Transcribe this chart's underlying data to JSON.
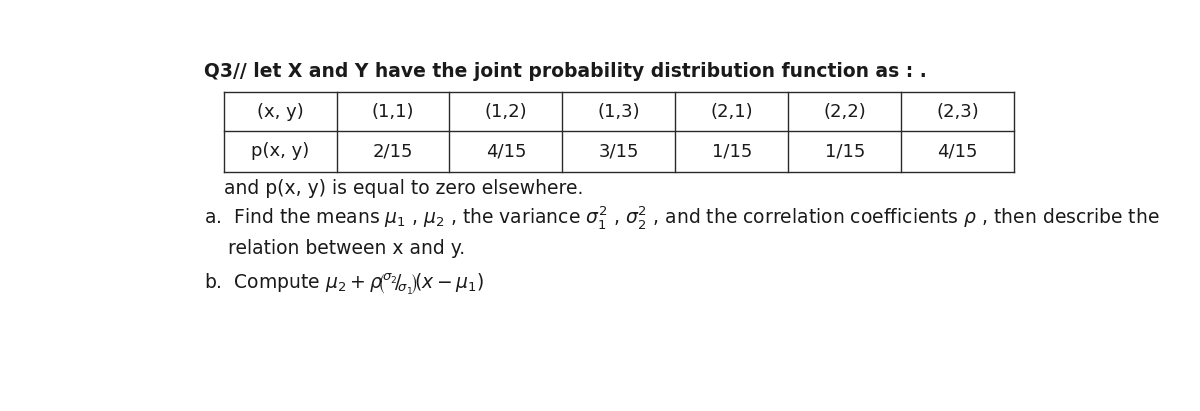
{
  "title": "Q3// let X and Y have the joint probability distribution function as : .",
  "table_headers": [
    "(x, y)",
    "(1,1)",
    "(1,2)",
    "(1,3)",
    "(2,1)",
    "(2,2)",
    "(2,3)"
  ],
  "table_row2": [
    "p(x, y)",
    "2/15",
    "4/15",
    "3/15",
    "1/15",
    "1/15",
    "4/15"
  ],
  "note": "and p(x, y) is equal to zero elsewhere.",
  "part_a_line1": "a.  Find the means $\\mu_1$ , $\\mu_2$ , the variance $\\sigma_1^2$ , $\\sigma_2^2$ , and the correlation coefficients $\\rho$ , then describe the",
  "part_a_line2": "    relation between x and y.",
  "part_b": "b.  Compute $\\mu_2 + \\rho(^{\\sigma_2}/_{\\sigma_1})(x - \\mu_1)$",
  "background": "#ffffff",
  "text_color": "#1a1a1a",
  "table_border_color": "#2a2a2a",
  "font_size_title": 13.5,
  "font_size_table": 13,
  "font_size_text": 13.5
}
